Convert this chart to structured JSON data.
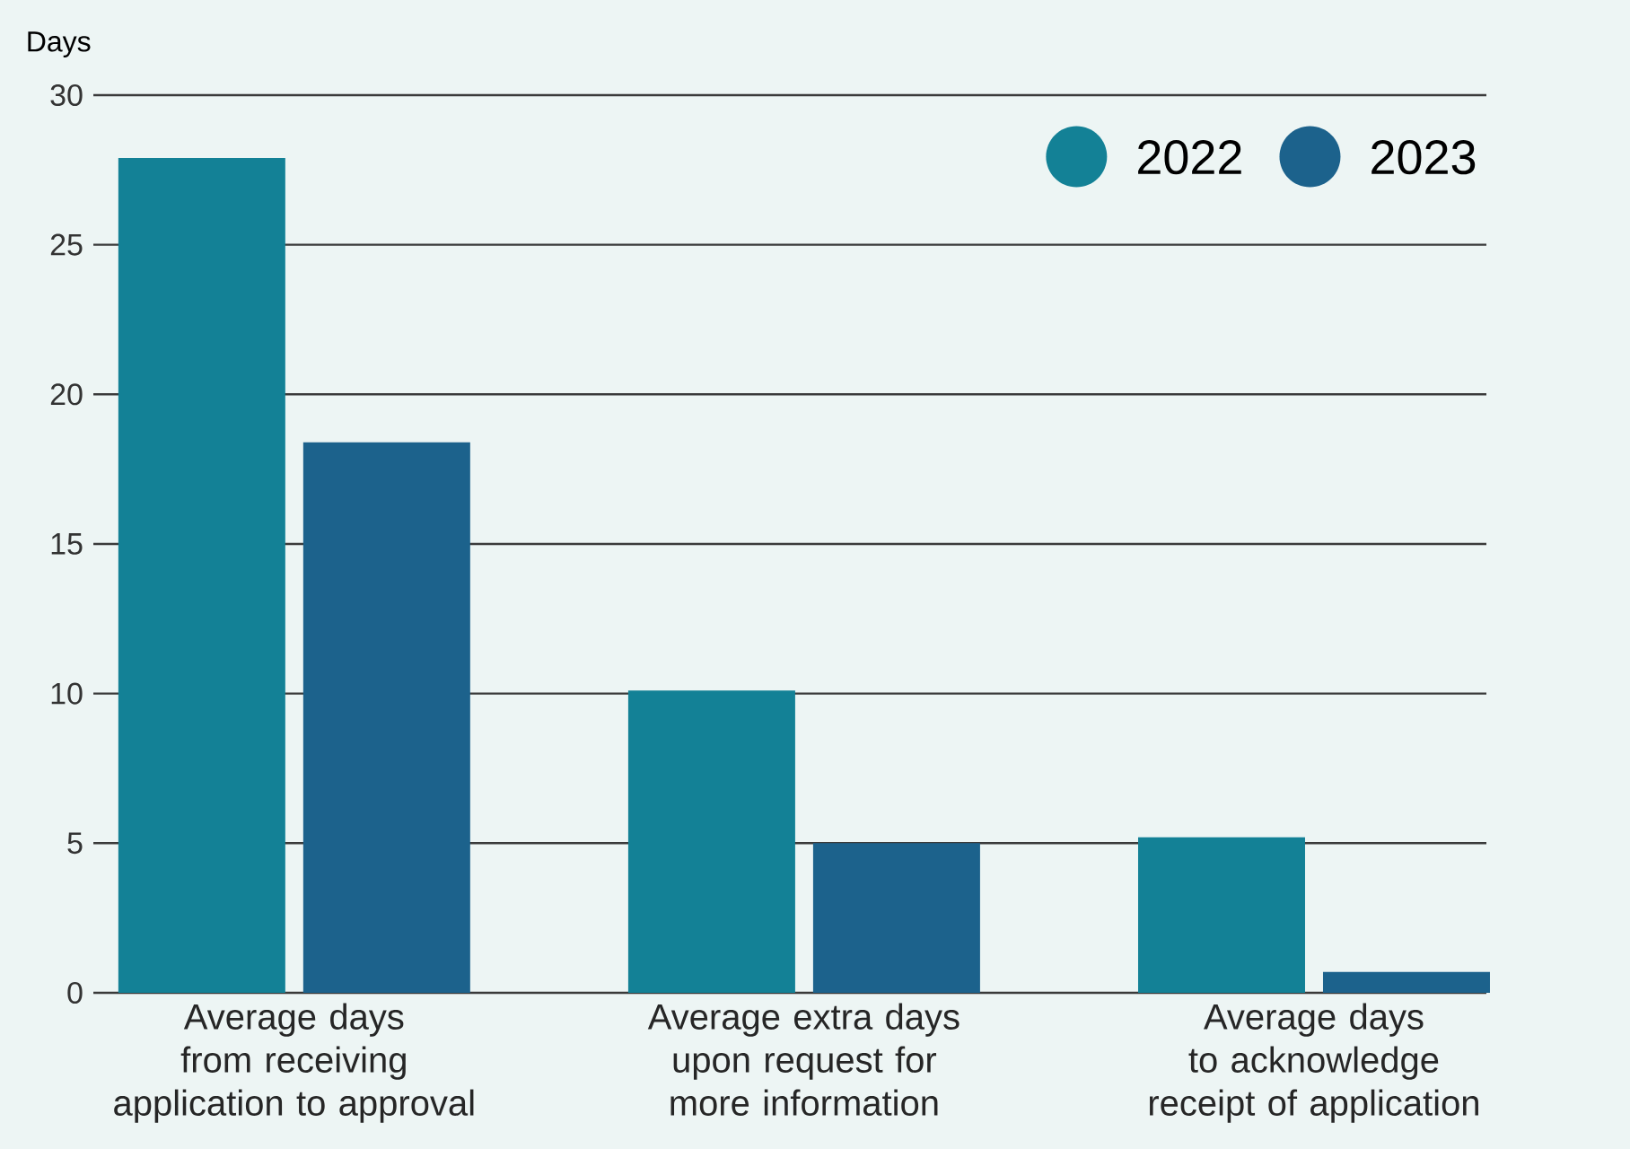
{
  "chart_data": {
    "type": "bar",
    "ylabel": "Days",
    "categories": [
      "Average days from receiving application to approval",
      "Average extra days upon request for more information",
      "Average days to acknowledge receipt of application"
    ],
    "series": [
      {
        "name": "2022",
        "color": "#138196",
        "values": [
          27.9,
          10.1,
          5.2
        ]
      },
      {
        "name": "2023",
        "color": "#1c628c",
        "values": [
          18.4,
          5.0,
          0.7
        ]
      }
    ],
    "ylim": [
      0,
      30
    ],
    "yticks": [
      0,
      5,
      10,
      15,
      20,
      25,
      30
    ],
    "grid": "y",
    "legend": "top right"
  }
}
